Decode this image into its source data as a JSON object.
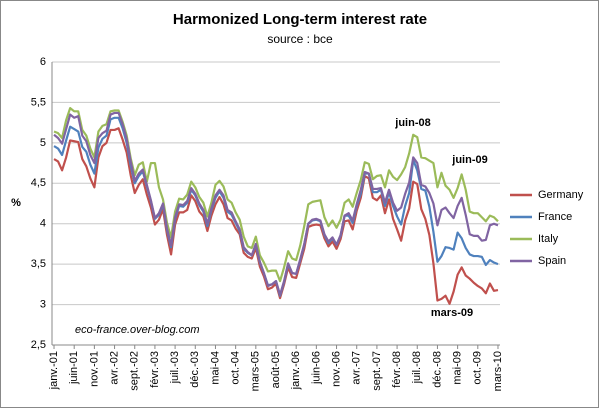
{
  "chart_data": {
    "type": "line",
    "title": "Harmonized Long-term interest rate",
    "subtitle": "source : bce",
    "y_label": "%",
    "annotations": [
      "juin-08",
      "juin-09",
      "mars-09",
      "eco-france.over-blog.com"
    ],
    "categories": [
      "janv.-01",
      null,
      null,
      null,
      null,
      "juin-01",
      null,
      null,
      null,
      null,
      "nov.-01",
      null,
      null,
      null,
      null,
      "avr.-02",
      null,
      null,
      null,
      null,
      "sept.-02",
      null,
      null,
      null,
      null,
      "févr.-03",
      null,
      null,
      null,
      null,
      "juil.-03",
      null,
      null,
      null,
      null,
      "déc.-03",
      null,
      null,
      null,
      null,
      "mai-04",
      null,
      null,
      null,
      null,
      "oct.-04",
      null,
      null,
      null,
      null,
      "mars-05",
      null,
      null,
      null,
      null,
      "août-05",
      null,
      null,
      null,
      null,
      "janv.-06",
      null,
      null,
      null,
      null,
      "juin-06",
      null,
      null,
      null,
      null,
      "nov.-06",
      null,
      null,
      null,
      null,
      "avr.-07",
      null,
      null,
      null,
      null,
      "sept.-07",
      null,
      null,
      null,
      null,
      "févr.-08",
      null,
      null,
      null,
      null,
      "juil.-08",
      null,
      null,
      null,
      null,
      "déc.-08",
      null,
      null,
      null,
      null,
      "mai-09",
      null,
      null,
      null,
      null,
      "oct.-09",
      null,
      null,
      null,
      null,
      "mars-10"
    ],
    "series": [
      {
        "name": "Germany",
        "color": "#c0504d",
        "values": [
          4.8,
          4.77,
          4.66,
          4.82,
          5.03,
          5.02,
          5.01,
          4.8,
          4.71,
          4.56,
          4.45,
          4.82,
          4.96,
          5.0,
          5.16,
          5.16,
          5.18,
          5.04,
          4.88,
          4.6,
          4.38,
          4.48,
          4.55,
          4.36,
          4.2,
          3.99,
          4.05,
          4.18,
          3.86,
          3.62,
          3.99,
          4.14,
          4.14,
          4.17,
          4.35,
          4.28,
          4.15,
          4.09,
          3.91,
          4.1,
          4.24,
          4.33,
          4.24,
          4.07,
          4.04,
          3.94,
          3.87,
          3.64,
          3.59,
          3.57,
          3.7,
          3.47,
          3.35,
          3.19,
          3.21,
          3.26,
          3.08,
          3.25,
          3.46,
          3.34,
          3.33,
          3.51,
          3.69,
          3.96,
          3.98,
          3.99,
          3.98,
          3.82,
          3.72,
          3.78,
          3.69,
          3.81,
          4.03,
          4.04,
          3.93,
          4.16,
          4.32,
          4.59,
          4.56,
          4.32,
          4.29,
          4.35,
          4.13,
          4.3,
          4.06,
          3.93,
          3.79,
          4.04,
          4.19,
          4.52,
          4.49,
          4.18,
          4.06,
          3.86,
          3.51,
          3.05,
          3.07,
          3.11,
          3.01,
          3.16,
          3.37,
          3.46,
          3.36,
          3.32,
          3.27,
          3.23,
          3.2,
          3.14,
          3.26,
          3.17,
          3.18
        ]
      },
      {
        "name": "France",
        "color": "#4f81bd",
        "values": [
          4.96,
          4.93,
          4.85,
          5.03,
          5.2,
          5.17,
          5.14,
          4.95,
          4.89,
          4.73,
          4.62,
          4.94,
          5.05,
          5.09,
          5.29,
          5.31,
          5.31,
          5.18,
          5.0,
          4.72,
          4.5,
          4.59,
          4.65,
          4.46,
          4.28,
          4.06,
          4.11,
          4.24,
          3.92,
          3.71,
          4.06,
          4.22,
          4.21,
          4.26,
          4.42,
          4.35,
          4.23,
          4.15,
          3.97,
          4.17,
          4.32,
          4.4,
          4.32,
          4.15,
          4.11,
          4.01,
          3.91,
          3.69,
          3.64,
          3.61,
          3.74,
          3.52,
          3.39,
          3.24,
          3.25,
          3.29,
          3.11,
          3.28,
          3.5,
          3.39,
          3.38,
          3.55,
          3.74,
          4.0,
          4.04,
          4.05,
          4.03,
          3.86,
          3.76,
          3.82,
          3.74,
          3.85,
          4.1,
          4.1,
          4.01,
          4.22,
          4.37,
          4.62,
          4.62,
          4.39,
          4.39,
          4.42,
          4.22,
          4.39,
          4.22,
          4.09,
          3.99,
          4.22,
          4.38,
          4.79,
          4.66,
          4.43,
          4.41,
          4.21,
          3.9,
          3.53,
          3.6,
          3.71,
          3.7,
          3.68,
          3.89,
          3.82,
          3.7,
          3.62,
          3.6,
          3.6,
          3.59,
          3.49,
          3.55,
          3.52,
          3.5
        ]
      },
      {
        "name": "Italy",
        "color": "#9bbb59",
        "values": [
          5.14,
          5.12,
          5.06,
          5.28,
          5.43,
          5.39,
          5.39,
          5.16,
          5.09,
          4.93,
          4.82,
          5.14,
          5.21,
          5.23,
          5.39,
          5.4,
          5.4,
          5.26,
          5.09,
          4.81,
          4.6,
          4.73,
          4.76,
          4.52,
          4.75,
          4.75,
          4.45,
          4.3,
          4.01,
          3.83,
          4.15,
          4.31,
          4.3,
          4.36,
          4.52,
          4.45,
          4.33,
          4.26,
          4.09,
          4.26,
          4.48,
          4.53,
          4.46,
          4.3,
          4.26,
          4.14,
          4.05,
          3.84,
          3.72,
          3.7,
          3.84,
          3.61,
          3.52,
          3.41,
          3.42,
          3.42,
          3.29,
          3.46,
          3.66,
          3.57,
          3.55,
          3.73,
          3.97,
          4.24,
          4.27,
          4.28,
          4.29,
          4.08,
          3.97,
          4.04,
          3.95,
          4.05,
          4.26,
          4.3,
          4.21,
          4.38,
          4.54,
          4.76,
          4.74,
          4.55,
          4.59,
          4.6,
          4.45,
          4.66,
          4.58,
          4.54,
          4.61,
          4.7,
          4.87,
          5.1,
          5.07,
          4.82,
          4.81,
          4.78,
          4.75,
          4.45,
          4.63,
          4.47,
          4.42,
          4.32,
          4.44,
          4.61,
          4.42,
          4.15,
          4.13,
          4.13,
          4.08,
          4.03,
          4.1,
          4.08,
          4.03
        ]
      },
      {
        "name": "Spain",
        "color": "#8064a2",
        "values": [
          5.1,
          5.06,
          4.99,
          5.17,
          5.35,
          5.31,
          5.33,
          5.09,
          5.02,
          4.85,
          4.75,
          5.06,
          5.12,
          5.15,
          5.35,
          5.37,
          5.37,
          5.23,
          5.05,
          4.77,
          4.53,
          4.62,
          4.67,
          4.48,
          4.29,
          4.07,
          4.13,
          4.25,
          3.94,
          3.73,
          4.08,
          4.24,
          4.23,
          4.28,
          4.44,
          4.37,
          4.25,
          4.17,
          4.0,
          4.19,
          4.35,
          4.42,
          4.35,
          4.17,
          4.14,
          4.03,
          3.93,
          3.71,
          3.65,
          3.61,
          3.75,
          3.53,
          3.39,
          3.23,
          3.25,
          3.29,
          3.12,
          3.29,
          3.51,
          3.39,
          3.38,
          3.56,
          3.75,
          4.0,
          4.05,
          4.06,
          4.04,
          3.87,
          3.78,
          3.83,
          3.74,
          3.86,
          4.1,
          4.13,
          4.04,
          4.24,
          4.42,
          4.64,
          4.62,
          4.43,
          4.43,
          4.44,
          4.26,
          4.42,
          4.26,
          4.16,
          4.2,
          4.37,
          4.51,
          4.82,
          4.75,
          4.48,
          4.46,
          4.38,
          4.25,
          3.98,
          4.17,
          4.2,
          4.13,
          4.07,
          4.22,
          4.32,
          4.11,
          3.87,
          3.85,
          3.85,
          3.79,
          3.8,
          3.98,
          4.0,
          3.98
        ]
      }
    ],
    "ylim": [
      2.5,
      6
    ],
    "yticks": [
      {
        "value": 2.5,
        "label": "2,5"
      },
      3,
      {
        "value": 3.5,
        "label": "3,5"
      },
      4,
      {
        "value": 4.5,
        "label": "4,5"
      },
      5,
      {
        "value": 5.5,
        "label": "5,5"
      },
      6
    ],
    "grid": true,
    "legend": "right"
  }
}
